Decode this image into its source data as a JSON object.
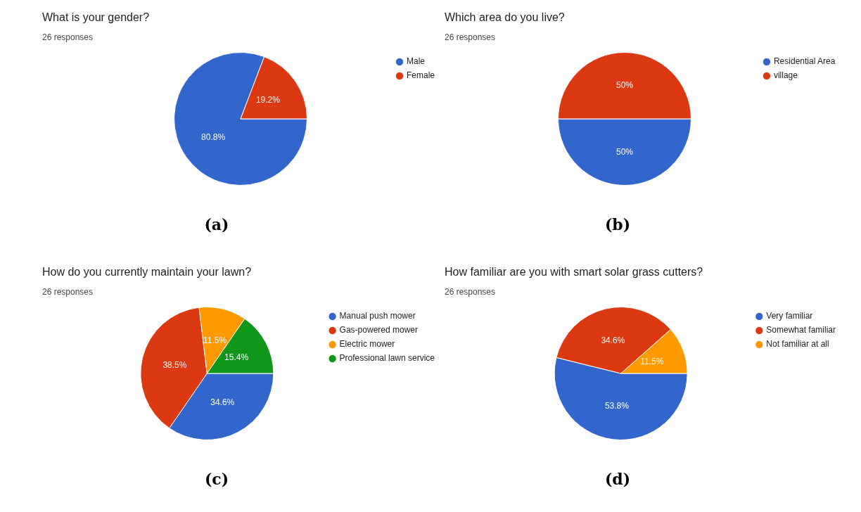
{
  "chart_data": [
    {
      "type": "pie",
      "title": "What is your gender?",
      "subtitle": "26 responses",
      "categories": [
        "Male",
        "Female"
      ],
      "values": [
        80.8,
        19.2
      ],
      "colors": [
        "#3366cc",
        "#dc3912"
      ],
      "value_labels": [
        "80.8%",
        "19.2%"
      ],
      "legend": "top right",
      "annotations": [
        "(a)"
      ]
    },
    {
      "type": "pie",
      "title": "Which area do you live?",
      "subtitle": "26 responses",
      "categories": [
        "Residential Area",
        "village"
      ],
      "values": [
        50,
        50
      ],
      "colors": [
        "#3366cc",
        "#dc3912"
      ],
      "value_labels": [
        "50%",
        "50%"
      ],
      "legend": "top right",
      "annotations": [
        "(b)"
      ]
    },
    {
      "type": "pie",
      "title": "How do you currently maintain your lawn?",
      "subtitle": "26 responses",
      "categories": [
        "Manual push mower",
        "Gas-powered mower",
        "Electric mower",
        "Professional lawn service"
      ],
      "values": [
        34.6,
        38.5,
        11.5,
        15.4
      ],
      "colors": [
        "#3366cc",
        "#dc3912",
        "#ff9900",
        "#109618"
      ],
      "value_labels": [
        "34.6%",
        "38.5%",
        "11.5%",
        "15.4%"
      ],
      "legend": "top right",
      "annotations": [
        "(c)"
      ]
    },
    {
      "type": "pie",
      "title": "How familiar are you with smart solar grass cutters?",
      "subtitle": "26 responses",
      "categories": [
        "Very familiar",
        "Somewhat familiar",
        "Not familiar at all"
      ],
      "values": [
        53.8,
        34.6,
        11.5
      ],
      "colors": [
        "#3366cc",
        "#dc3912",
        "#ff9900"
      ],
      "value_labels": [
        "53.8%",
        "34.6%",
        "11.5%"
      ],
      "legend": "top right",
      "annotations": [
        "(d)"
      ]
    }
  ]
}
